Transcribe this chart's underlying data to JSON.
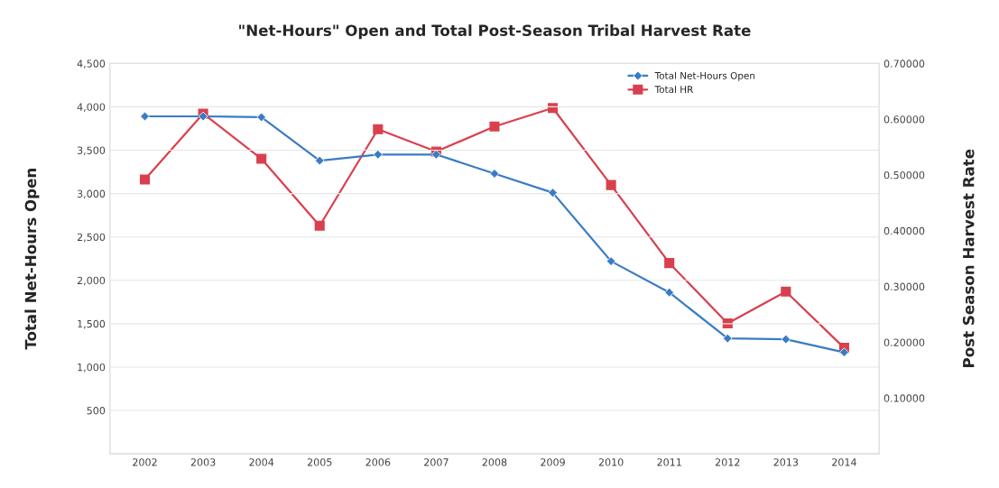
{
  "chart_data": {
    "type": "line",
    "title": "\"Net-Hours\" Open and Total Post-Season Tribal Harvest Rate",
    "ylabel": "Total Net-Hours Open",
    "y2label": "Post Season Harvest Rate",
    "categories": [
      "2002",
      "2003",
      "2004",
      "2005",
      "2006",
      "2007",
      "2008",
      "2009",
      "2010",
      "2011",
      "2012",
      "2013",
      "2014"
    ],
    "series": [
      {
        "name": "Total Net-Hours Open",
        "color": "#3a7cc4",
        "marker": "diamond",
        "values": [
          3890,
          3890,
          3880,
          3380,
          3450,
          3450,
          3230,
          3010,
          2220,
          1860,
          1330,
          1320,
          1170
        ]
      },
      {
        "name": "Total HR",
        "color": "#d9404f",
        "marker": "square",
        "axis": "y2",
        "values": [
          0.492,
          0.61,
          0.529,
          0.409,
          0.582,
          0.542,
          0.587,
          0.62,
          0.482,
          0.342,
          0.234,
          0.291,
          0.19
        ]
      }
    ],
    "ylim": [
      0,
      4500
    ],
    "yticks": [
      {
        "value": 0,
        "label": null
      },
      {
        "value": 500,
        "label": "500"
      },
      {
        "value": 1000,
        "label": "1,000"
      },
      {
        "value": 1500,
        "label": "1,500"
      },
      {
        "value": 2000,
        "label": "2,000"
      },
      {
        "value": 2500,
        "label": "2,500"
      },
      {
        "value": 3000,
        "label": "3,000"
      },
      {
        "value": 3500,
        "label": "3,500"
      },
      {
        "value": 4000,
        "label": "4,000"
      },
      {
        "value": 4500,
        "label": "4,500"
      }
    ],
    "y2lim": [
      0,
      0.7
    ],
    "y2ticks": [
      {
        "value": 0,
        "label": null
      },
      {
        "value": 0.1,
        "label": "0.10000"
      },
      {
        "value": 0.2,
        "label": "0.20000"
      },
      {
        "value": 0.3,
        "label": "0.30000"
      },
      {
        "value": 0.4,
        "label": "0.40000"
      },
      {
        "value": 0.5,
        "label": "0.50000"
      },
      {
        "value": 0.6,
        "label": "0.60000"
      },
      {
        "value": 0.7,
        "label": "0.70000"
      }
    ],
    "grid": "y",
    "legend": "top right",
    "line_style": "solid"
  }
}
